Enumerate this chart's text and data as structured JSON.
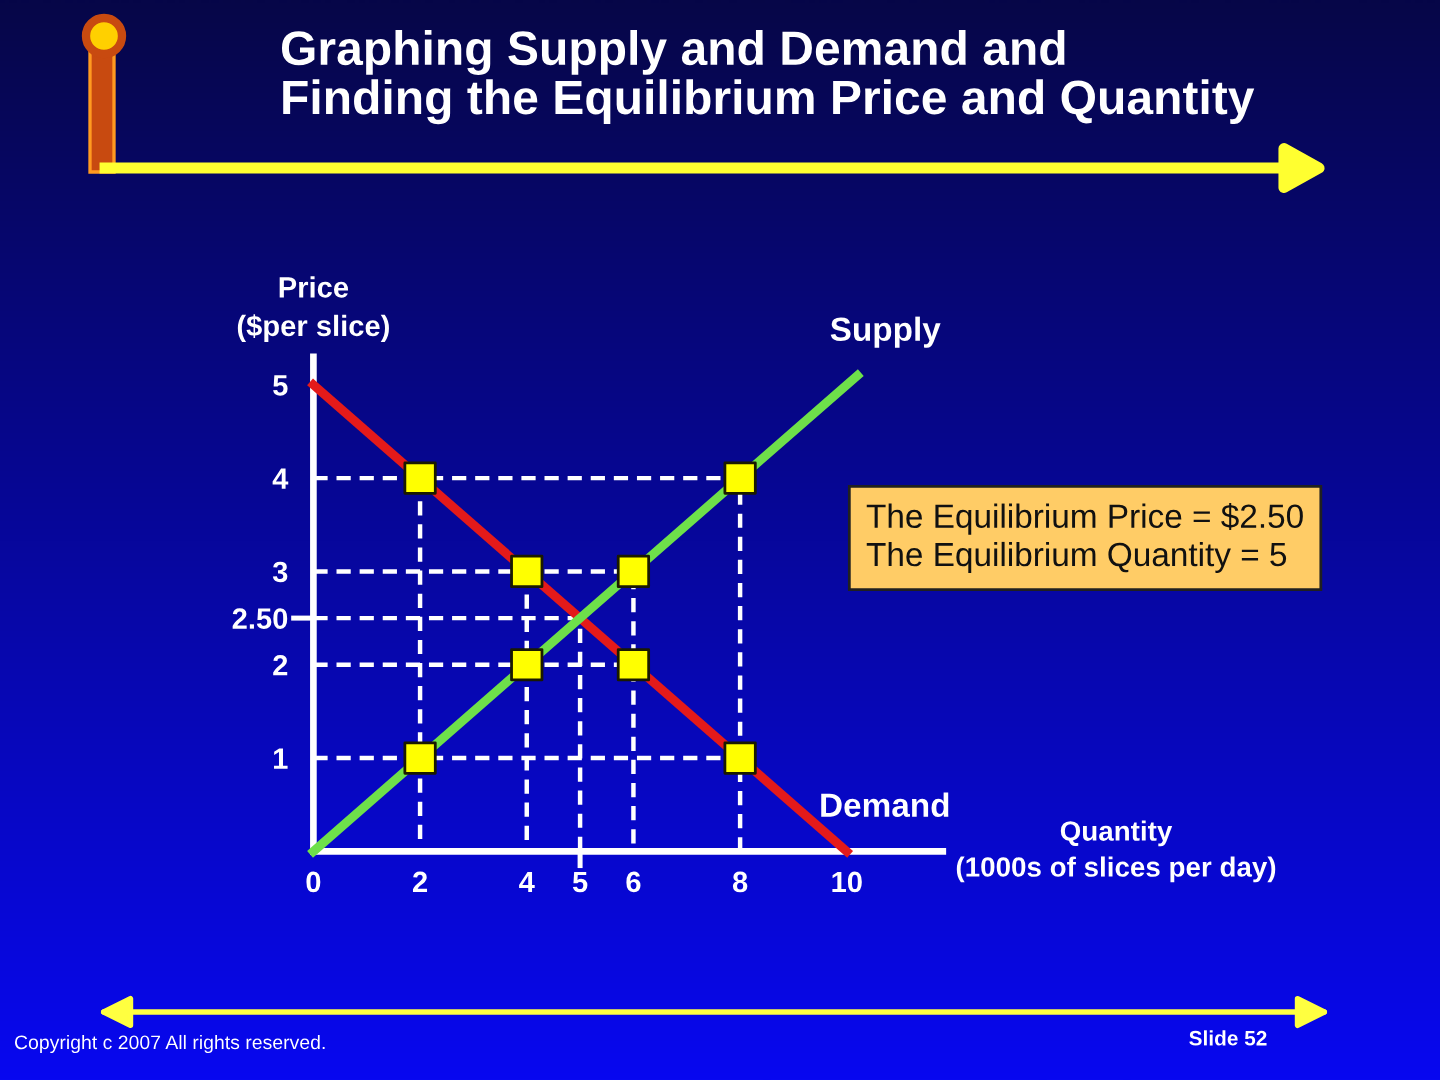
{
  "chart_data": {
    "type": "line",
    "title": "Graphing Supply and Demand and\nFinding the Equilibrium Price and Quantity",
    "xlabel": "Quantity\n(1000s of slices per day)",
    "ylabel": "Price\n($per slice)",
    "series": [
      {
        "color": "#ffffff",
        "line_style": "dashed",
        "x": [
          0,
          8,
          8
        ],
        "values": [
          4,
          4,
          0
        ]
      },
      {
        "color": "#ffffff",
        "line_style": "dashed",
        "x": [
          2,
          2
        ],
        "values": [
          4,
          0
        ]
      },
      {
        "color": "#ffffff",
        "line_style": "dashed",
        "x": [
          0,
          6,
          6
        ],
        "values": [
          3,
          3,
          0
        ]
      },
      {
        "color": "#ffffff",
        "line_style": "dashed",
        "x": [
          4,
          4
        ],
        "values": [
          3,
          0
        ]
      },
      {
        "color": "#ffffff",
        "line_style": "dashed",
        "x": [
          0,
          6
        ],
        "values": [
          2,
          2
        ]
      },
      {
        "color": "#ffffff",
        "line_style": "dashed",
        "x": [
          0,
          8
        ],
        "values": [
          1,
          1
        ]
      },
      {
        "color": "#ffffff",
        "line_style": "dashed",
        "x": [
          0,
          5,
          5
        ],
        "values": [
          2.5,
          2.5,
          0
        ]
      },
      {
        "name": "Demand",
        "color": "#e41a1a",
        "x": [
          0,
          10
        ],
        "values": [
          5,
          0
        ]
      },
      {
        "name": "Supply",
        "color": "#6ee04a",
        "x": [
          0,
          10.2
        ],
        "values": [
          0,
          5.1
        ]
      },
      {
        "type": "scatter",
        "color": "#ffff00",
        "marker": "square",
        "x": [
          2,
          4,
          6,
          8,
          2,
          4,
          6,
          8
        ],
        "values": [
          4,
          3,
          2,
          1,
          1,
          2,
          3,
          4
        ]
      }
    ],
    "xlim": [
      0,
      11.8
    ],
    "ylim": [
      0,
      5.3
    ],
    "xticks": [
      0,
      2,
      4,
      5,
      6,
      8,
      10
    ],
    "yticks": [
      1,
      2,
      {
        "value": 2.5,
        "label": "2.50"
      },
      3,
      4,
      5
    ],
    "annotations": [
      "The Equilibrium Price = $2.50\nThe Equilibrium Quantity = 5",
      "Copyright c 2007 All rights reserved.",
      "Slide 52"
    ]
  }
}
